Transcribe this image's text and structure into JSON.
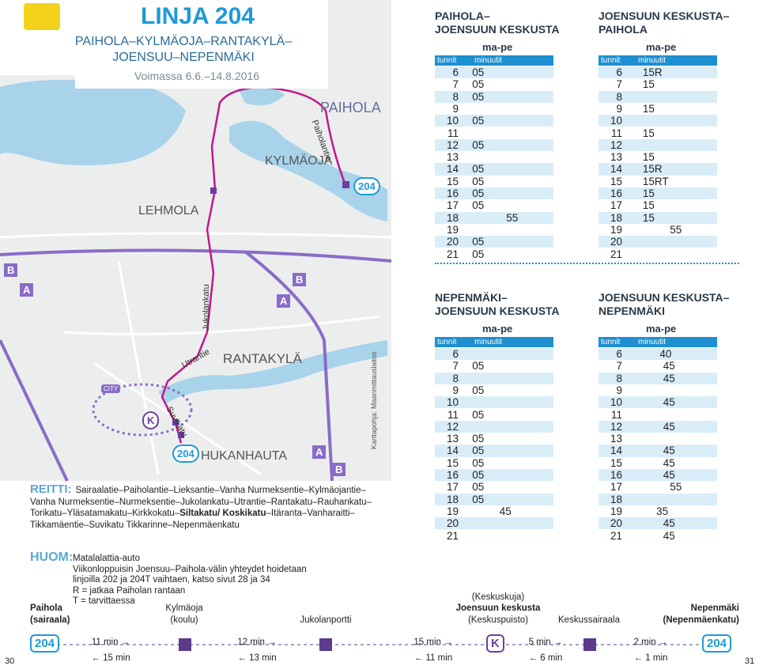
{
  "header": {
    "title": "LINJA 204",
    "subtitle": [
      "PAIHOLA–KYLMÄOJA–RANTAKYLÄ–",
      "JOENSUU–NEPENMÄKI"
    ],
    "validity": "Voimassa 6.6.–14.8.2016"
  },
  "map": {
    "labels": [
      "PAIHOLA",
      "KYLMÄOJA",
      "LEHMOLA",
      "RANTAKYLÄ",
      "HUKANHAUTA",
      "Paiholantie",
      "Jukolankatu",
      "Utrantie",
      "Suvikatu",
      "CITY",
      "Karttapohja: Maanmittauslaitos"
    ],
    "markers": [
      "204",
      "204",
      "K"
    ],
    "letters": [
      "A",
      "A",
      "A",
      "B",
      "B",
      "B"
    ]
  },
  "route": {
    "label": "REITTI:",
    "parts": [
      {
        "text": "Sairaalatie–Paiholantie–Lieksantie–Vanha Nurmeksentie–Kylmäojantie–Vanha Nurmeksentie–Nurmeksentie–Jukolankatu–Utrantie–Rantakatu–Rauhankatu–Torikatu–Ylä­satamakatu–Kirkkokatu–"
      },
      {
        "text": "Siltakatu/ Koskikatu",
        "bold": true
      },
      {
        "text": "–Itäranta–Vanharaitti–Tikkamäentie–Suvikatu Tikkarinne–Nepenmäenkatu"
      }
    ]
  },
  "timetables": [
    {
      "title": [
        "PAIHOLA–",
        "JOENSUUN KESKUSTA"
      ],
      "days": "ma-pe",
      "columns": [
        "tunnit",
        "minuutit"
      ],
      "rows": [
        {
          "hour": "6",
          "minutes": [
            "05"
          ]
        },
        {
          "hour": "7",
          "minutes": [
            "05"
          ]
        },
        {
          "hour": "8",
          "minutes": [
            "05"
          ]
        },
        {
          "hour": "9",
          "minutes": []
        },
        {
          "hour": "10",
          "minutes": [
            "05"
          ]
        },
        {
          "hour": "11",
          "minutes": []
        },
        {
          "hour": "12",
          "minutes": [
            "05"
          ]
        },
        {
          "hour": "13",
          "minutes": []
        },
        {
          "hour": "14",
          "minutes": [
            "05"
          ]
        },
        {
          "hour": "15",
          "minutes": [
            "05"
          ]
        },
        {
          "hour": "16",
          "minutes": [
            "05"
          ]
        },
        {
          "hour": "17",
          "minutes": [
            "05"
          ]
        },
        {
          "hour": "18",
          "minutes": [
            "55"
          ]
        },
        {
          "hour": "19",
          "minutes": []
        },
        {
          "hour": "20",
          "minutes": [
            "05"
          ]
        },
        {
          "hour": "21",
          "minutes": [
            "05"
          ]
        }
      ]
    },
    {
      "title": [
        "JOENSUUN KESKUSTA–",
        "PAIHOLA"
      ],
      "days": "ma-pe",
      "columns": [
        "tunnit",
        "minuutit"
      ],
      "rows": [
        {
          "hour": "6",
          "minutes": [
            "15R"
          ]
        },
        {
          "hour": "7",
          "minutes": [
            "15"
          ]
        },
        {
          "hour": "8",
          "minutes": []
        },
        {
          "hour": "9",
          "minutes": [
            "15"
          ]
        },
        {
          "hour": "10",
          "minutes": []
        },
        {
          "hour": "11",
          "minutes": [
            "15"
          ]
        },
        {
          "hour": "12",
          "minutes": []
        },
        {
          "hour": "13",
          "minutes": [
            "15"
          ]
        },
        {
          "hour": "14",
          "minutes": [
            "15R"
          ]
        },
        {
          "hour": "15",
          "minutes": [
            "15RT"
          ]
        },
        {
          "hour": "16",
          "minutes": [
            "15"
          ]
        },
        {
          "hour": "17",
          "minutes": [
            "15"
          ]
        },
        {
          "hour": "18",
          "minutes": [
            "15"
          ]
        },
        {
          "hour": "19",
          "minutes": [
            "55"
          ]
        },
        {
          "hour": "20",
          "minutes": []
        },
        {
          "hour": "21",
          "minutes": []
        }
      ]
    },
    {
      "title": [
        "NEPENMÄKI–",
        "JOENSUUN KESKUSTA"
      ],
      "days": "ma-pe",
      "columns": [
        "tunnit",
        "minuutit"
      ],
      "rows": [
        {
          "hour": "6",
          "minutes": []
        },
        {
          "hour": "7",
          "minutes": [
            "05"
          ]
        },
        {
          "hour": "8",
          "minutes": []
        },
        {
          "hour": "9",
          "minutes": [
            "05"
          ]
        },
        {
          "hour": "10",
          "minutes": []
        },
        {
          "hour": "11",
          "minutes": [
            "05"
          ]
        },
        {
          "hour": "12",
          "minutes": []
        },
        {
          "hour": "13",
          "minutes": [
            "05"
          ]
        },
        {
          "hour": "14",
          "minutes": [
            "05"
          ]
        },
        {
          "hour": "15",
          "minutes": [
            "05"
          ]
        },
        {
          "hour": "16",
          "minutes": [
            "05"
          ]
        },
        {
          "hour": "17",
          "minutes": [
            "05"
          ]
        },
        {
          "hour": "18",
          "minutes": [
            "05"
          ]
        },
        {
          "hour": "19",
          "minutes": [
            "45"
          ]
        },
        {
          "hour": "20",
          "minutes": []
        },
        {
          "hour": "21",
          "minutes": []
        }
      ]
    },
    {
      "title": [
        "JOENSUUN KESKUSTA–",
        "NEPENMÄKI"
      ],
      "days": "ma-pe",
      "columns": [
        "tunnit",
        "minuutit"
      ],
      "rows": [
        {
          "hour": "6",
          "minutes": [
            "40"
          ]
        },
        {
          "hour": "7",
          "minutes": [
            "45"
          ]
        },
        {
          "hour": "8",
          "minutes": [
            "45"
          ]
        },
        {
          "hour": "9",
          "minutes": []
        },
        {
          "hour": "10",
          "minutes": [
            "45"
          ]
        },
        {
          "hour": "11",
          "minutes": []
        },
        {
          "hour": "12",
          "minutes": [
            "45"
          ]
        },
        {
          "hour": "13",
          "minutes": []
        },
        {
          "hour": "14",
          "minutes": [
            "45"
          ]
        },
        {
          "hour": "15",
          "minutes": [
            "45"
          ]
        },
        {
          "hour": "16",
          "minutes": [
            "45"
          ]
        },
        {
          "hour": "17",
          "minutes": [
            "55"
          ]
        },
        {
          "hour": "18",
          "minutes": []
        },
        {
          "hour": "19",
          "minutes": [
            "35"
          ]
        },
        {
          "hour": "20",
          "minutes": [
            "45"
          ]
        },
        {
          "hour": "21",
          "minutes": [
            "45"
          ]
        }
      ]
    }
  ],
  "notes": {
    "label": "HUOM:",
    "lines": [
      "Matalalattia-auto",
      "Viikonloppuisin Joensuu–Paihola-välin yhteydet hoidetaan",
      "linjoilla 202 ja 204T vaihtaen, katso sivut 28 ja 34",
      "R = jatkaa Paiholan rantaan",
      "T = tarvittaessa"
    ]
  },
  "strip": {
    "stops": [
      {
        "lines": [
          {
            "text": "Paihola",
            "bold": true
          },
          {
            "text": "(sairaala)",
            "bold": true
          }
        ]
      },
      {
        "lines": [
          {
            "text": "Kylmäoja"
          },
          {
            "text": "(koulu)"
          }
        ]
      },
      {
        "lines": [
          {
            "text": "Jukolanportti"
          }
        ]
      },
      {
        "lines": [
          {
            "text": "(Keskuskuja)"
          },
          {
            "text": "Joensuun keskusta",
            "bold": true
          },
          {
            "text": "(Keskuspuisto)"
          }
        ]
      },
      {
        "lines": [
          {
            "text": "Keskussairaala"
          }
        ]
      },
      {
        "lines": [
          {
            "text": "Nepenmäki",
            "bold": true
          },
          {
            "text": "(Nepenmäenkatu)",
            "bold": true
          }
        ]
      }
    ],
    "badges": [
      "204",
      "K",
      "204"
    ],
    "forward": [
      "11 min →",
      "12 min →",
      "15 min →",
      "5 min →",
      "2 min →"
    ],
    "back": [
      "← 15 min",
      "← 13 min",
      "← 11 min",
      "← 6 min",
      "← 1 min"
    ]
  },
  "page_numbers": [
    "30",
    "31"
  ]
}
